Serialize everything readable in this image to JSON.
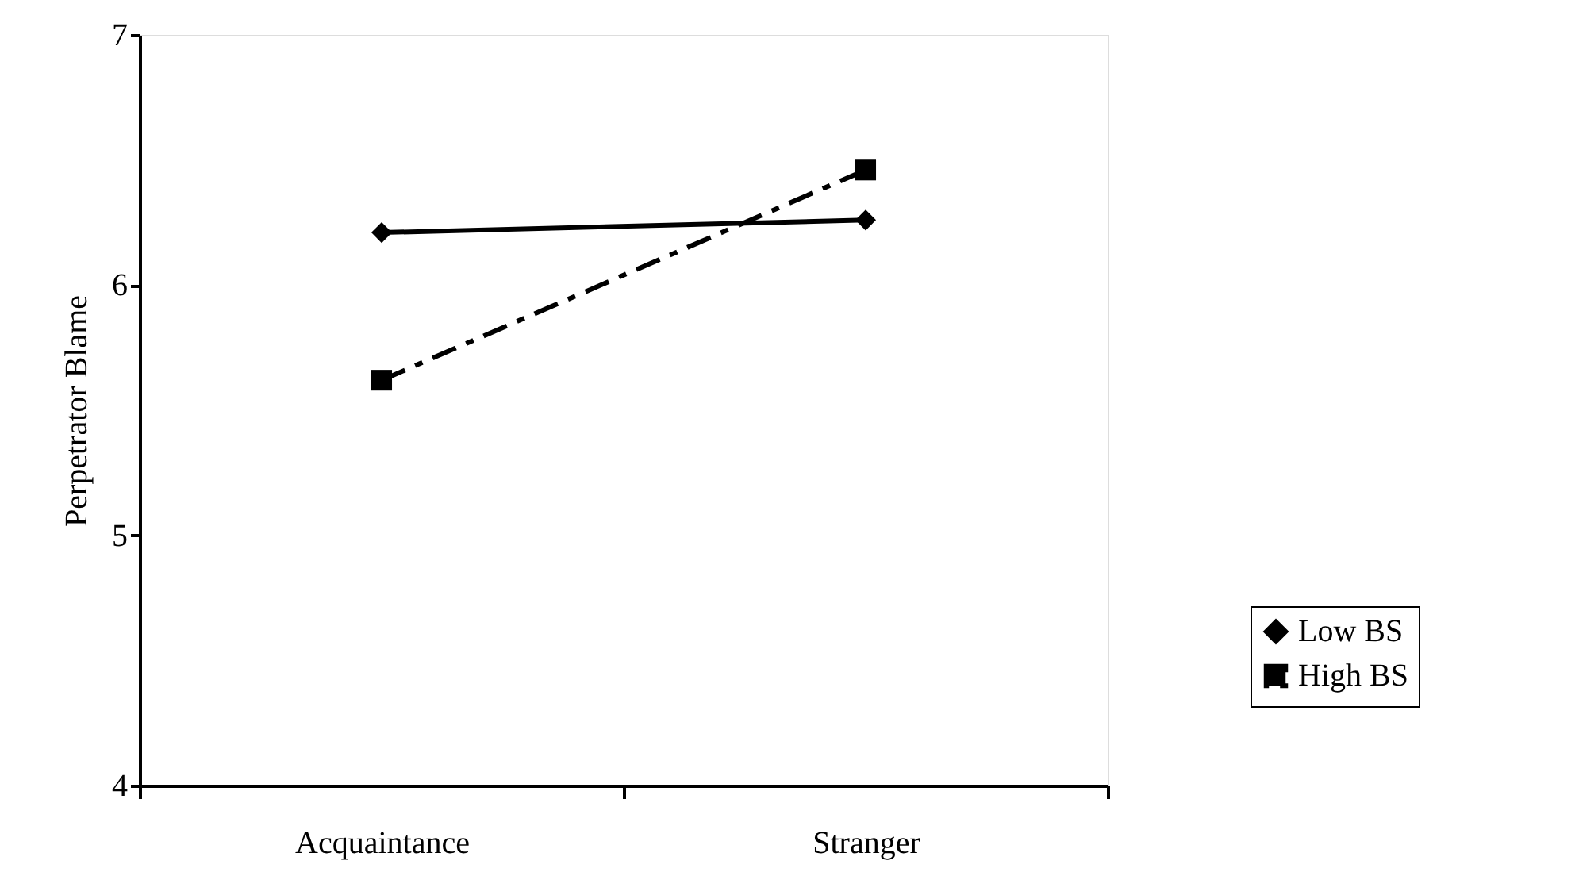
{
  "chart_data": {
    "type": "line",
    "ylabel": "Perpetrator Blame",
    "categories": [
      "Acquaintance",
      "Stranger"
    ],
    "series": [
      {
        "name": "Low BS",
        "color": "#000000",
        "values": [
          6.21,
          6.26
        ],
        "marker": "diamond",
        "line_style": "solid"
      },
      {
        "name": "High BS",
        "color": "#000000",
        "values": [
          5.62,
          6.46
        ],
        "marker": "square",
        "line_style": "dashed"
      }
    ],
    "ylim": [
      4,
      7
    ],
    "yticks": [
      4,
      5,
      6,
      7
    ],
    "grid": false,
    "legend": "right"
  }
}
